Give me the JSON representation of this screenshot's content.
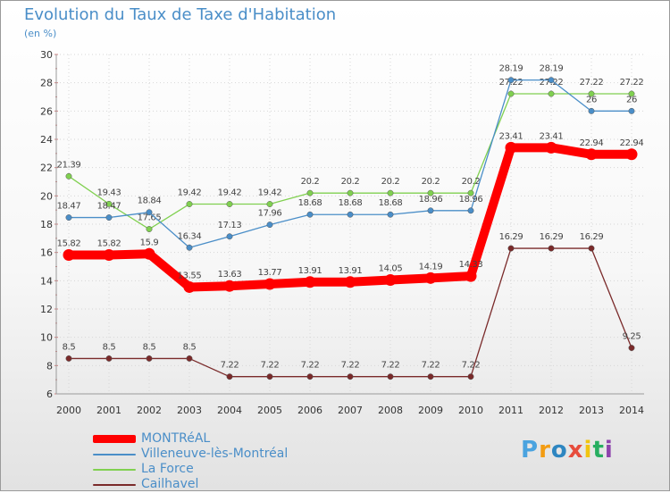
{
  "chart_data": {
    "type": "line",
    "title": "Evolution du Taux de Taxe d'Habitation",
    "subtitle": "(en %)",
    "x": [
      "2000",
      "2001",
      "2002",
      "2003",
      "2004",
      "2005",
      "2006",
      "2007",
      "2008",
      "2009",
      "2010",
      "2011",
      "2012",
      "2013",
      "2014"
    ],
    "ylim": [
      6,
      30
    ],
    "yticks": [
      6,
      8,
      10,
      12,
      14,
      16,
      18,
      20,
      22,
      24,
      26,
      28,
      30
    ],
    "grid": true,
    "legend_position": "bottom-left",
    "series": [
      {
        "name": "MONTRéAL",
        "color": "#ff0000",
        "values": [
          15.82,
          15.82,
          15.9,
          13.55,
          13.63,
          13.77,
          13.91,
          13.91,
          14.05,
          14.19,
          14.33,
          23.41,
          23.41,
          22.94,
          22.94
        ],
        "labels": [
          "15.82",
          "15.82",
          "15.9",
          "13.55",
          "13.63",
          "13.77",
          "13.91",
          "13.91",
          "14.05",
          "14.19",
          "14.33",
          "23.41",
          "23.41",
          "22.94",
          "22.94"
        ]
      },
      {
        "name": "Villeneuve-lès-Montréal",
        "color": "#4a8ec8",
        "values": [
          18.47,
          18.47,
          18.84,
          16.34,
          17.13,
          17.96,
          18.68,
          18.68,
          18.68,
          18.96,
          18.96,
          28.19,
          28.19,
          26,
          26
        ],
        "labels": [
          "18.47",
          "18.47",
          "18.84",
          "16.34",
          "17.13",
          "17.96",
          "18.68",
          "18.68",
          "18.68",
          "18.96",
          "18.96",
          "28.19",
          "28.19",
          "26",
          "26"
        ]
      },
      {
        "name": "La Force",
        "color": "#80d050",
        "values": [
          21.39,
          19.43,
          17.65,
          19.42,
          19.42,
          19.42,
          20.2,
          20.2,
          20.2,
          20.2,
          20.2,
          27.22,
          27.22,
          27.22,
          27.22
        ],
        "labels": [
          "21.39",
          "19.43",
          "17.65",
          "19.42",
          "19.42",
          "19.42",
          "20.2",
          "20.2",
          "20.2",
          "20.2",
          "20.2",
          "27.22",
          "27.22",
          "27.22",
          "27.22"
        ]
      },
      {
        "name": "Cailhavel",
        "color": "#7a2a2a",
        "values": [
          8.5,
          8.5,
          8.5,
          8.5,
          7.22,
          7.22,
          7.22,
          7.22,
          7.22,
          7.22,
          7.22,
          16.29,
          16.29,
          16.29,
          9.25
        ],
        "labels": [
          "8.5",
          "8.5",
          "8.5",
          "8.5",
          "7.22",
          "7.22",
          "7.22",
          "7.22",
          "7.22",
          "7.22",
          "7.22",
          "16.29",
          "16.29",
          "16.29",
          "9.25"
        ]
      }
    ]
  },
  "brand": {
    "letters": [
      "P",
      "r",
      "o",
      "x",
      "i",
      "t",
      "i"
    ],
    "colors": [
      "#4aa3df",
      "#f39c12",
      "#2e86c1",
      "#e74c3c",
      "#f1c40f",
      "#27ae60",
      "#8e44ad"
    ]
  }
}
